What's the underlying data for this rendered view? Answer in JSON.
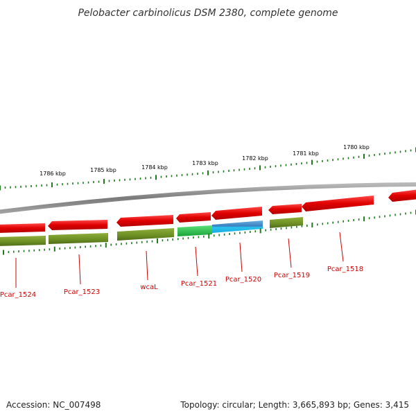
{
  "title": "Pelobacter carbinolicus DSM 2380, complete genome",
  "footer": {
    "accession": "Accession: NC_007498",
    "summary": "Topology: circular; Length: 3,665,893 bp; Genes: 3,415"
  },
  "ticks": [
    "1786 kbp",
    "1785 kbp",
    "1784 kbp",
    "1783 kbp",
    "1782 kbp",
    "1781 kbp",
    "1780 kbp"
  ],
  "genes": [
    {
      "name": "Pcar_1524"
    },
    {
      "name": "Pcar_1523"
    },
    {
      "name": "wcaL"
    },
    {
      "name": "Pcar_1521"
    },
    {
      "name": "Pcar_1520"
    },
    {
      "name": "Pcar_1519"
    },
    {
      "name": "Pcar_1518"
    }
  ],
  "colors": {
    "gene_arrow": "#dd0000",
    "cds_olive": "#6b8e23",
    "cds_green": "#22bb44",
    "cds_blue": "#1ea8e0",
    "label": "#cc0000",
    "tick": "#1f7a1f",
    "backbone": "#888888"
  }
}
